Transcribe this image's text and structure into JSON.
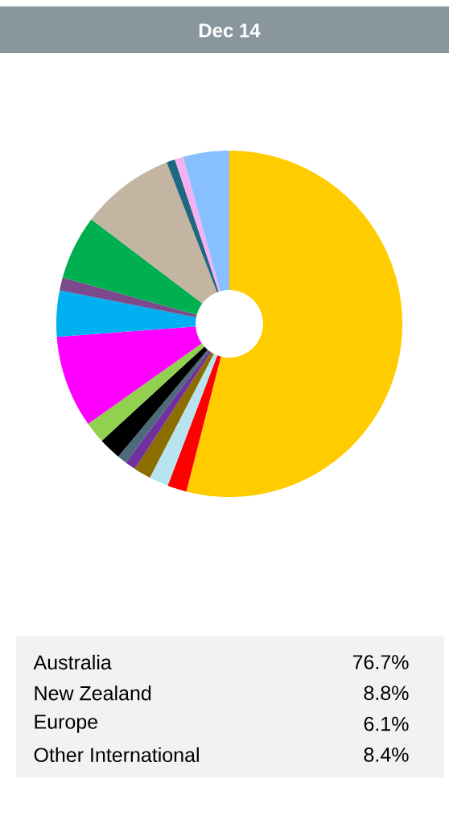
{
  "chart_data": {
    "type": "donut",
    "title": "Dec 14",
    "categories": [
      null,
      null,
      null,
      null,
      null,
      null,
      null,
      null,
      null,
      null,
      null,
      null,
      null,
      null,
      null,
      null
    ],
    "values": [
      54.0,
      1.8,
      1.8,
      1.6,
      1.0,
      0.9,
      2.1,
      2.0,
      8.6,
      4.3,
      1.2,
      6.0,
      8.8,
      0.8,
      0.8,
      4.3
    ],
    "colors": [
      "#ffcc00",
      "#ff0000",
      "#b8e4f0",
      "#8c6d00",
      "#7030a0",
      "#4d6a7a",
      "#000000",
      "#92d050",
      "#ff00ff",
      "#00b0f0",
      "#7a4a8c",
      "#00b050",
      "#c4b5a3",
      "#1f6680",
      "#f4b0f0",
      "#88c0ff"
    ],
    "annotations": [
      "Australia",
      "76.7%",
      "New Zealand",
      "8.8%",
      "Europe",
      "6.1%",
      "Other International",
      "8.4%"
    ]
  }
}
